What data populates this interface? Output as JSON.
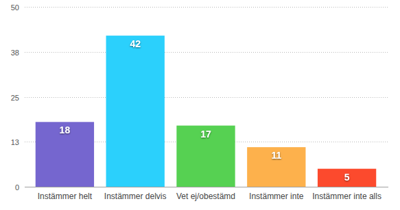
{
  "chart_data": {
    "type": "bar",
    "categories": [
      "Instämmer helt",
      "Instämmer delvis",
      "Vet ej/obestämd",
      "Instämmer inte",
      "Instämmer inte alls"
    ],
    "values": [
      18,
      42,
      17,
      11,
      5
    ],
    "colors": [
      "#7566cf",
      "#2bd0fc",
      "#56d152",
      "#fdb14c",
      "#fc4a2d"
    ],
    "ylim": [
      0,
      50
    ],
    "yticks": [
      0,
      {
        "value": 12.5,
        "label": "13"
      },
      25,
      {
        "value": 37.5,
        "label": "38"
      },
      50
    ],
    "grid": true,
    "data_labels": true
  }
}
